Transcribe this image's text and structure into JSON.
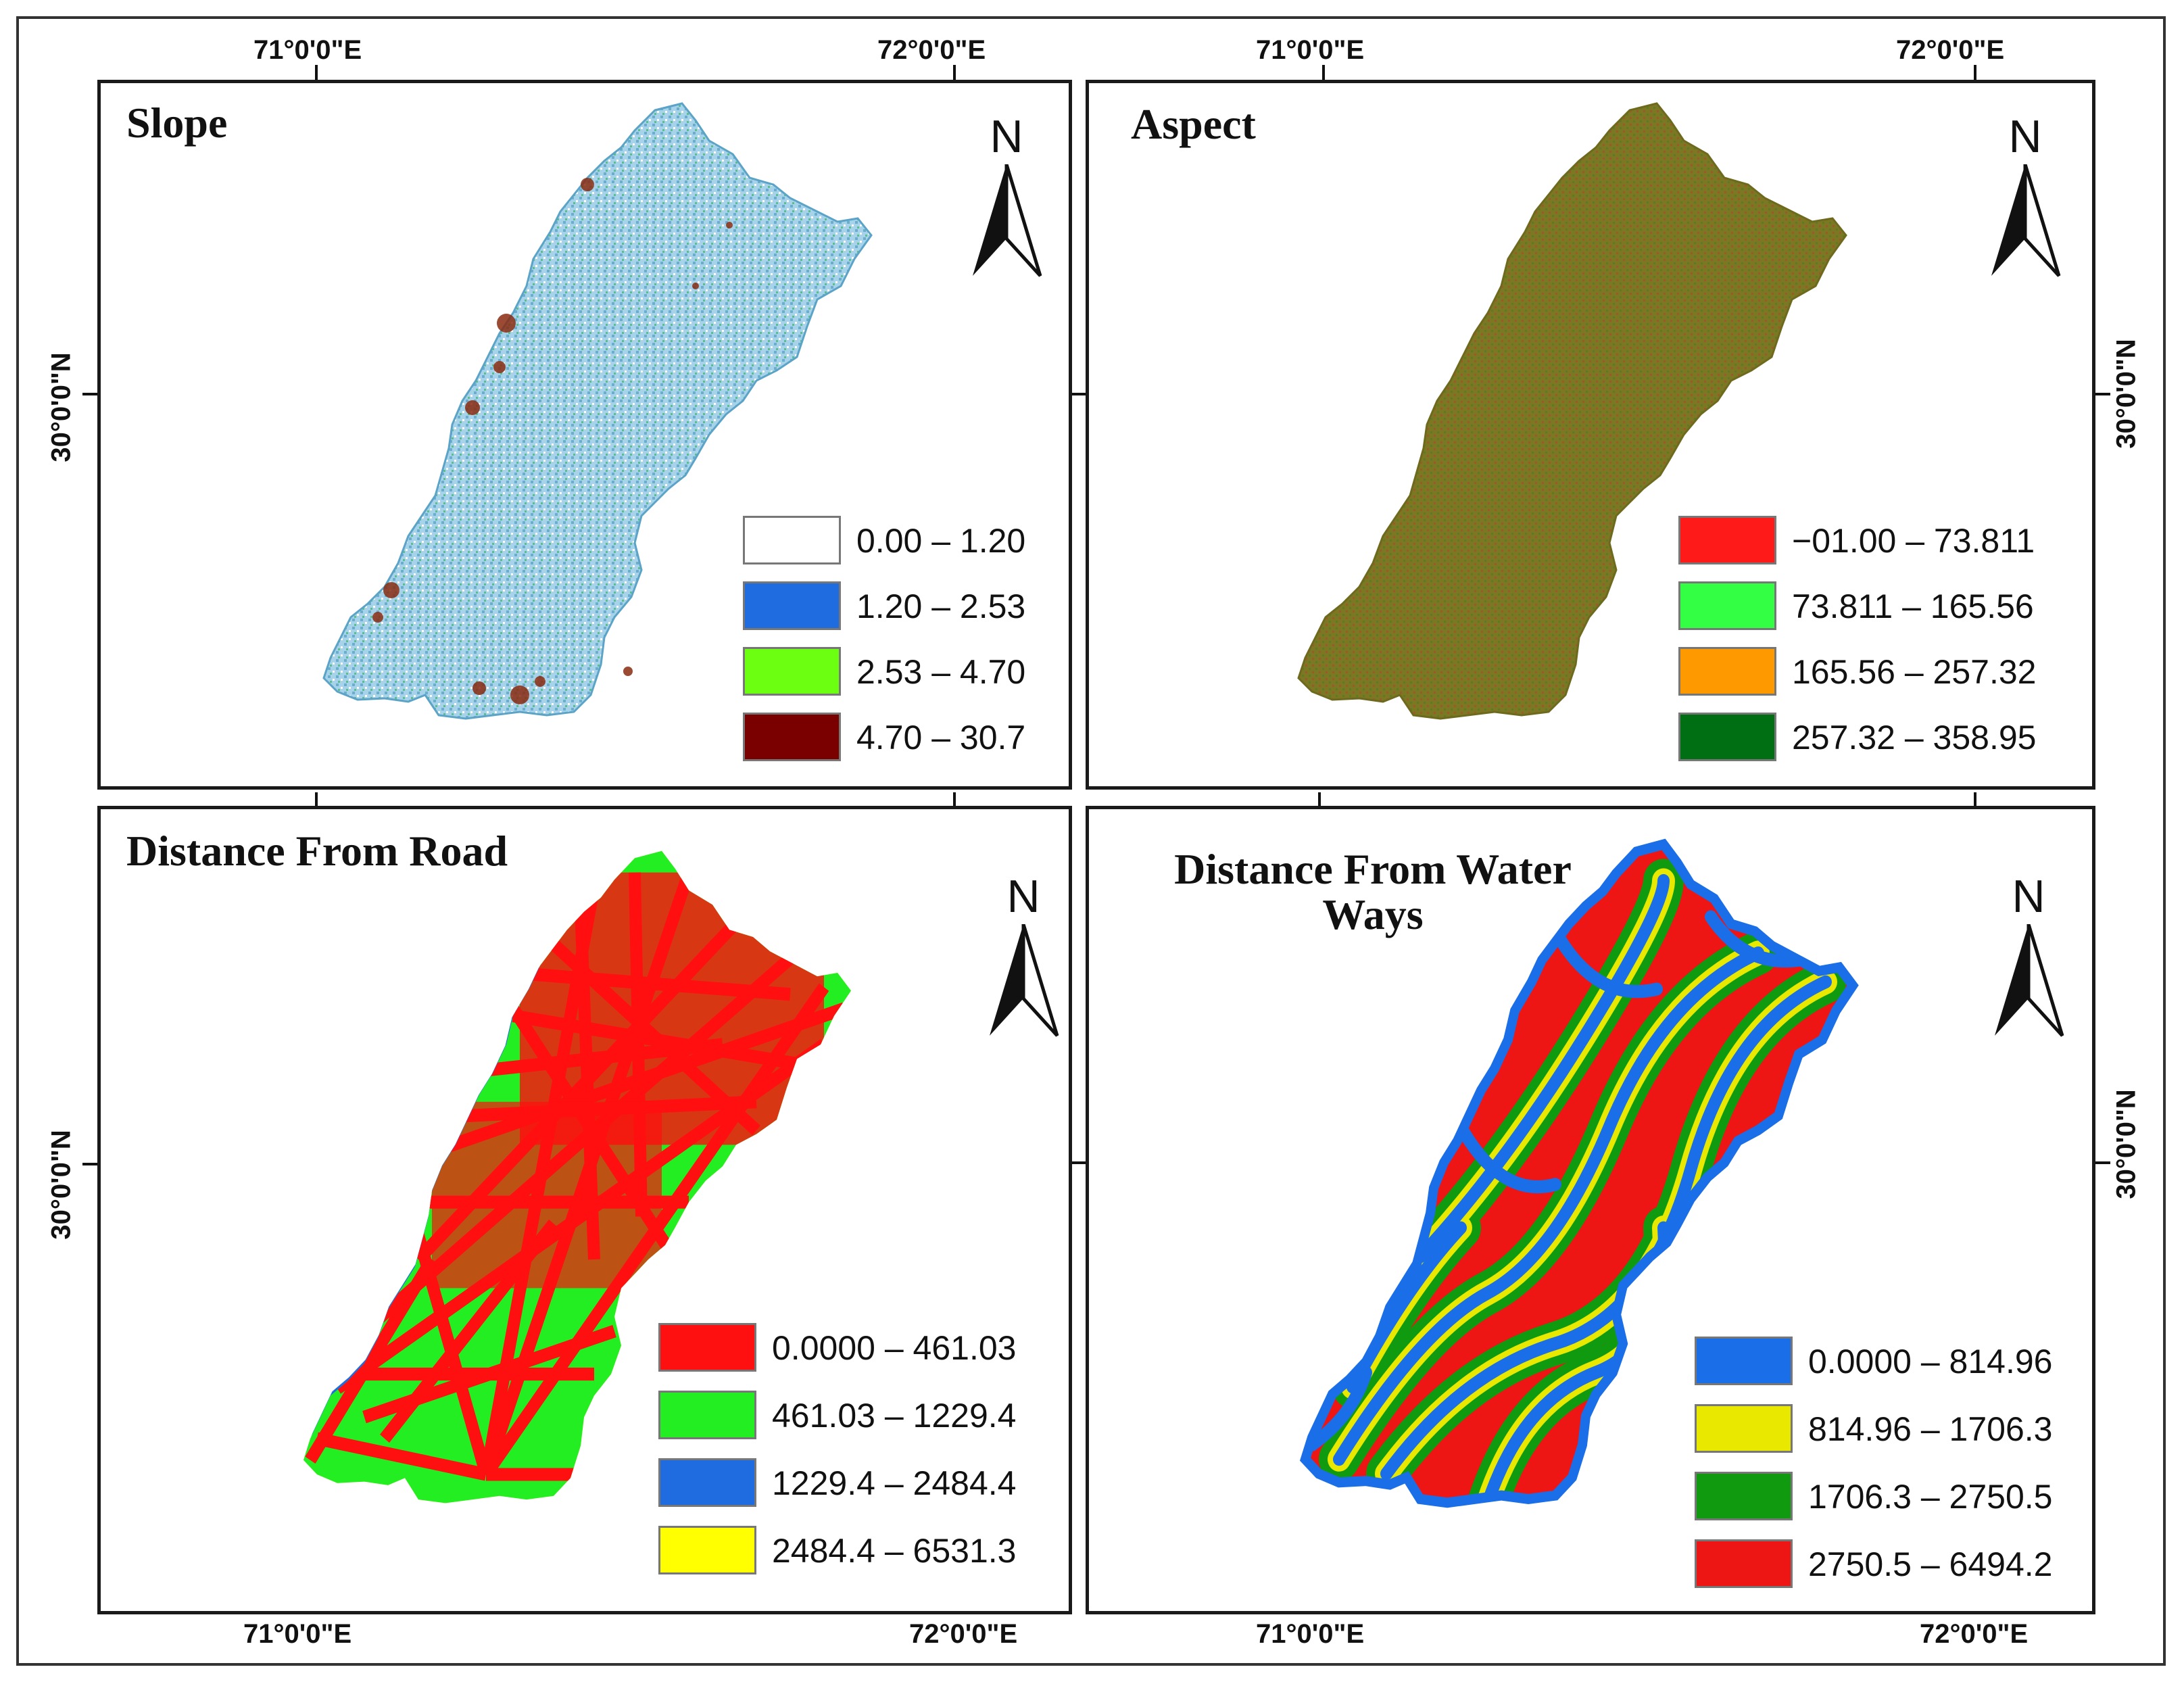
{
  "coordinates": {
    "lon_71": "71°0'0\"E",
    "lon_72": "72°0'0\"E",
    "lat_30": "30°0'0\"N"
  },
  "north_arrow": {
    "letter": "N"
  },
  "panels": [
    {
      "id": "slope",
      "title": "Slope",
      "legend": [
        {
          "label": "0.00  –  1.20",
          "color": "#ffffff"
        },
        {
          "label": "1.20  –  2.53",
          "color": "#1f6be0"
        },
        {
          "label": "2.53  –  4.70",
          "color": "#6cff12"
        },
        {
          "label": "4.70  –  30.7",
          "color": "#7a0000"
        }
      ],
      "fill_colors": [
        "#9ccde6",
        "#6fb3d4"
      ]
    },
    {
      "id": "aspect",
      "title": "Aspect",
      "legend": [
        {
          "label": "−01.00  –  73.811",
          "color": "#ff1a1a"
        },
        {
          "label": "73.811 – 165.56",
          "color": "#33ff44"
        },
        {
          "label": "165.56 – 257.32",
          "color": "#ff9900"
        },
        {
          "label": "257.32 – 358.95",
          "color": "#006e12"
        }
      ],
      "fill_colors": [
        "#7d7a20",
        "#8a6b28"
      ]
    },
    {
      "id": "road",
      "title": "Distance From Road",
      "legend": [
        {
          "label": "0.0000 – 461.03",
          "color": "#ff1010"
        },
        {
          "label": "461.03 – 1229.4",
          "color": "#22ee22"
        },
        {
          "label": "1229.4 – 2484.4",
          "color": "#1f6be0"
        },
        {
          "label": "2484.4 – 6531.3",
          "color": "#ffff00"
        }
      ],
      "fill_colors": [
        "#ff1010",
        "#22ee22",
        "#1f6be0",
        "#ffff00"
      ]
    },
    {
      "id": "water",
      "title": "Distance From Water Ways",
      "legend": [
        {
          "label": "0.0000 – 814.96",
          "color": "#1a6ee8"
        },
        {
          "label": "814.96 – 1706.3",
          "color": "#e8e800"
        },
        {
          "label": "1706.3 – 2750.5",
          "color": "#109a10"
        },
        {
          "label": "2750.5 – 6494.2",
          "color": "#ee1515"
        }
      ],
      "fill_colors": [
        "#1a6ee8",
        "#e8e800",
        "#109a10",
        "#ee1515"
      ]
    }
  ]
}
